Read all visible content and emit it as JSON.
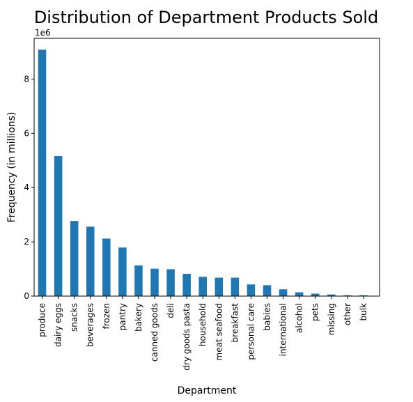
{
  "chart_data": {
    "type": "bar",
    "title": "Distribution of Department Products Sold",
    "xlabel": "Department",
    "ylabel": "Frequency (in millions)",
    "y_offset_label": "1e6",
    "ylim": [
      0,
      9500000
    ],
    "y_ticks": [
      0,
      2000000,
      4000000,
      6000000,
      8000000
    ],
    "y_tick_labels": [
      "0",
      "2",
      "4",
      "6",
      "8"
    ],
    "categories": [
      "produce",
      "dairy eggs",
      "snacks",
      "beverages",
      "frozen",
      "pantry",
      "bakery",
      "canned goods",
      "deli",
      "dry goods pasta",
      "household",
      "meat seafood",
      "breakfast",
      "personal care",
      "babies",
      "international",
      "alcohol",
      "pets",
      "missing",
      "other",
      "bulk"
    ],
    "values": [
      9080000,
      5160000,
      2770000,
      2560000,
      2120000,
      1790000,
      1130000,
      1010000,
      990000,
      820000,
      710000,
      680000,
      680000,
      430000,
      400000,
      250000,
      140000,
      90000,
      60000,
      30000,
      30000
    ],
    "bar_color": "#1f77b4",
    "grid": false,
    "legend": "none"
  }
}
